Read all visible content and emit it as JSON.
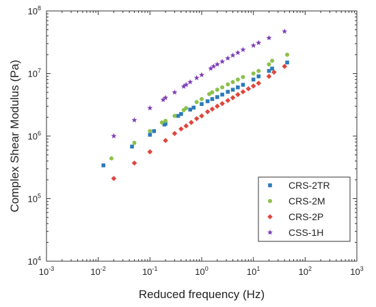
{
  "chart_data": {
    "type": "scatter",
    "xscale": "log",
    "yscale": "log",
    "xlabel": "Reduced frequency (Hz)",
    "ylabel": "Complex Shear Modulus (Pa)",
    "xlim": [
      0.001,
      1000
    ],
    "ylim": [
      10000,
      100000000
    ],
    "x_ticks": [
      {
        "base": "10",
        "exp": "-3",
        "value": 0.001
      },
      {
        "base": "10",
        "exp": "-2",
        "value": 0.01
      },
      {
        "base": "10",
        "exp": "-1",
        "value": 0.1
      },
      {
        "base": "10",
        "exp": "0",
        "value": 1
      },
      {
        "base": "10",
        "exp": "1",
        "value": 10
      },
      {
        "base": "10",
        "exp": "2",
        "value": 100
      },
      {
        "base": "10",
        "exp": "3",
        "value": 1000
      }
    ],
    "y_ticks": [
      {
        "base": "10",
        "exp": "4",
        "value": 10000
      },
      {
        "base": "10",
        "exp": "5",
        "value": 100000
      },
      {
        "base": "10",
        "exp": "6",
        "value": 1000000
      },
      {
        "base": "10",
        "exp": "7",
        "value": 10000000
      },
      {
        "base": "10",
        "exp": "8",
        "value": 100000000
      }
    ],
    "legend": {
      "position": "bottom-right"
    },
    "grid": false,
    "series": [
      {
        "name": "CRS-2TR",
        "marker": "square",
        "color": "#2b7bba",
        "points": [
          [
            0.0126,
            340000
          ],
          [
            0.045,
            680000
          ],
          [
            0.1,
            1050000
          ],
          [
            0.12,
            1200000
          ],
          [
            0.19,
            1530000
          ],
          [
            0.2,
            1580000
          ],
          [
            0.35,
            2100000
          ],
          [
            0.4,
            2250000
          ],
          [
            0.6,
            2650000
          ],
          [
            0.7,
            2850000
          ],
          [
            1.0,
            3250000
          ],
          [
            1.3,
            3600000
          ],
          [
            1.6,
            3900000
          ],
          [
            2.0,
            4200000
          ],
          [
            2.5,
            4600000
          ],
          [
            3.2,
            5100000
          ],
          [
            4.0,
            5500000
          ],
          [
            5.0,
            6000000
          ],
          [
            6.3,
            6600000
          ],
          [
            10,
            8000000
          ],
          [
            12.6,
            9000000
          ],
          [
            20,
            11000000
          ],
          [
            23,
            12000000
          ],
          [
            45,
            15000000
          ]
        ]
      },
      {
        "name": "CRS-2M",
        "marker": "circle",
        "color": "#8cc04c",
        "points": [
          [
            0.018,
            440000
          ],
          [
            0.05,
            780000
          ],
          [
            0.1,
            1200000
          ],
          [
            0.17,
            1650000
          ],
          [
            0.2,
            1750000
          ],
          [
            0.3,
            2100000
          ],
          [
            0.45,
            2600000
          ],
          [
            0.5,
            2800000
          ],
          [
            0.8,
            3500000
          ],
          [
            1.0,
            3900000
          ],
          [
            1.4,
            4700000
          ],
          [
            1.6,
            5000000
          ],
          [
            2.0,
            5500000
          ],
          [
            2.5,
            6000000
          ],
          [
            3.2,
            6700000
          ],
          [
            4.0,
            7300000
          ],
          [
            5.0,
            8000000
          ],
          [
            6.3,
            8800000
          ],
          [
            10,
            10000000
          ],
          [
            12.6,
            11000000
          ],
          [
            20,
            14000000
          ],
          [
            23,
            16000000
          ],
          [
            45,
            20000000
          ]
        ]
      },
      {
        "name": "CRS-2P",
        "marker": "diamond",
        "color": "#e0463c",
        "points": [
          [
            0.02,
            210000
          ],
          [
            0.05,
            370000
          ],
          [
            0.1,
            560000
          ],
          [
            0.2,
            850000
          ],
          [
            0.3,
            1100000
          ],
          [
            0.4,
            1300000
          ],
          [
            0.5,
            1450000
          ],
          [
            0.63,
            1650000
          ],
          [
            0.8,
            1900000
          ],
          [
            1.0,
            2100000
          ],
          [
            1.3,
            2450000
          ],
          [
            1.6,
            2700000
          ],
          [
            2.0,
            3000000
          ],
          [
            2.5,
            3300000
          ],
          [
            3.2,
            3700000
          ],
          [
            4.0,
            4100000
          ],
          [
            5.0,
            4600000
          ],
          [
            6.3,
            5100000
          ],
          [
            8.0,
            5700000
          ],
          [
            10,
            6300000
          ],
          [
            12.6,
            7000000
          ],
          [
            20,
            9000000
          ],
          [
            25,
            10500000
          ],
          [
            40,
            13000000
          ]
        ]
      },
      {
        "name": "CSS-1H",
        "marker": "star",
        "color": "#7d3cb5",
        "points": [
          [
            0.02,
            1000000
          ],
          [
            0.05,
            1800000
          ],
          [
            0.1,
            2800000
          ],
          [
            0.18,
            3800000
          ],
          [
            0.2,
            4100000
          ],
          [
            0.3,
            5000000
          ],
          [
            0.45,
            6200000
          ],
          [
            0.5,
            6600000
          ],
          [
            0.6,
            7300000
          ],
          [
            0.8,
            8500000
          ],
          [
            1.0,
            9500000
          ],
          [
            1.5,
            12000000
          ],
          [
            1.7,
            13000000
          ],
          [
            2.0,
            14000000
          ],
          [
            2.5,
            15500000
          ],
          [
            3.2,
            17500000
          ],
          [
            4.0,
            19500000
          ],
          [
            5.0,
            21500000
          ],
          [
            6.3,
            24000000
          ],
          [
            10,
            28000000
          ],
          [
            12.6,
            31000000
          ],
          [
            20,
            37000000
          ],
          [
            40,
            47000000
          ]
        ]
      }
    ]
  }
}
